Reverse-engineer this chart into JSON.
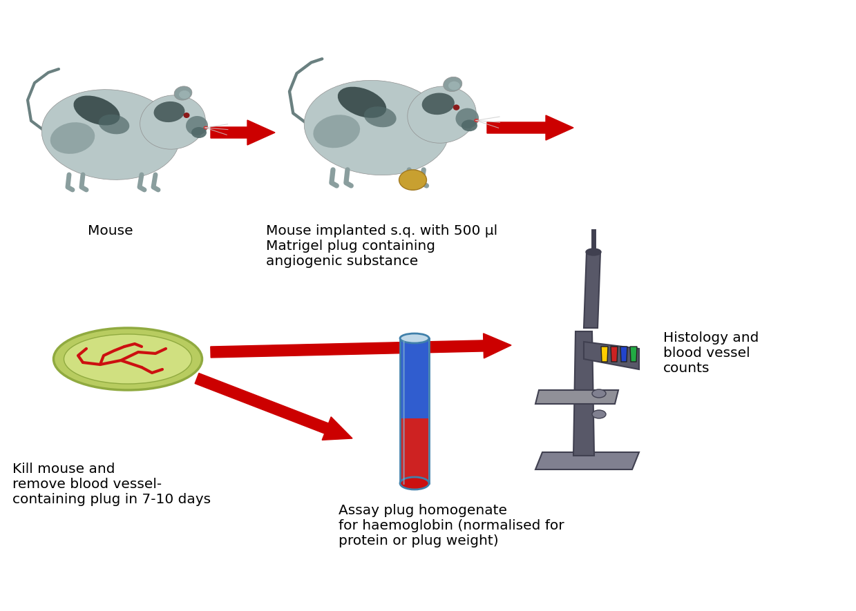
{
  "background_color": "#ffffff",
  "arrow_color": "#cc0000",
  "text_color": "#000000",
  "labels": {
    "mouse1": "Mouse",
    "mouse2": "Mouse implanted s.q. with 500 µl\nMatrigel plug containing\nangiogenic substance",
    "kill": "Kill mouse and\nremove blood vessel-\ncontaining plug in 7-10 days",
    "assay": "Assay plug homogenate\nfor haemoglobin (normalised for\nprotein or plug weight)",
    "histology": "Histology and\nblood vessel\ncounts"
  },
  "mouse_body_color": "#b8c8c8",
  "mouse_body_color2": "#a8bcbc",
  "mouse_dark1": "#1a2e2e",
  "mouse_dark2": "#506868",
  "mouse_gray1": "#788e8e",
  "mouse_gray2": "#6a8080",
  "mouse_gray3": "#8a9e9e",
  "mouse_eye_color": "#8b1a1a",
  "mouse_nose_color": "#cc3333",
  "plug_color": "#c8a030",
  "plug_edge": "#a07820",
  "petri_outer": "#b8cc60",
  "petri_inner": "#d0e080",
  "petri_rim": "#90aa40",
  "vessel_color": "#cc1010",
  "tube_blue": "#2050cc",
  "tube_red": "#cc1010",
  "tube_outline": "#4080aa",
  "tube_highlight": "#80b0d0",
  "mic_dark": "#404050",
  "mic_mid": "#585868",
  "mic_light": "#808090",
  "mic_base": "#6a6a7a",
  "mic_stage": "#909098"
}
